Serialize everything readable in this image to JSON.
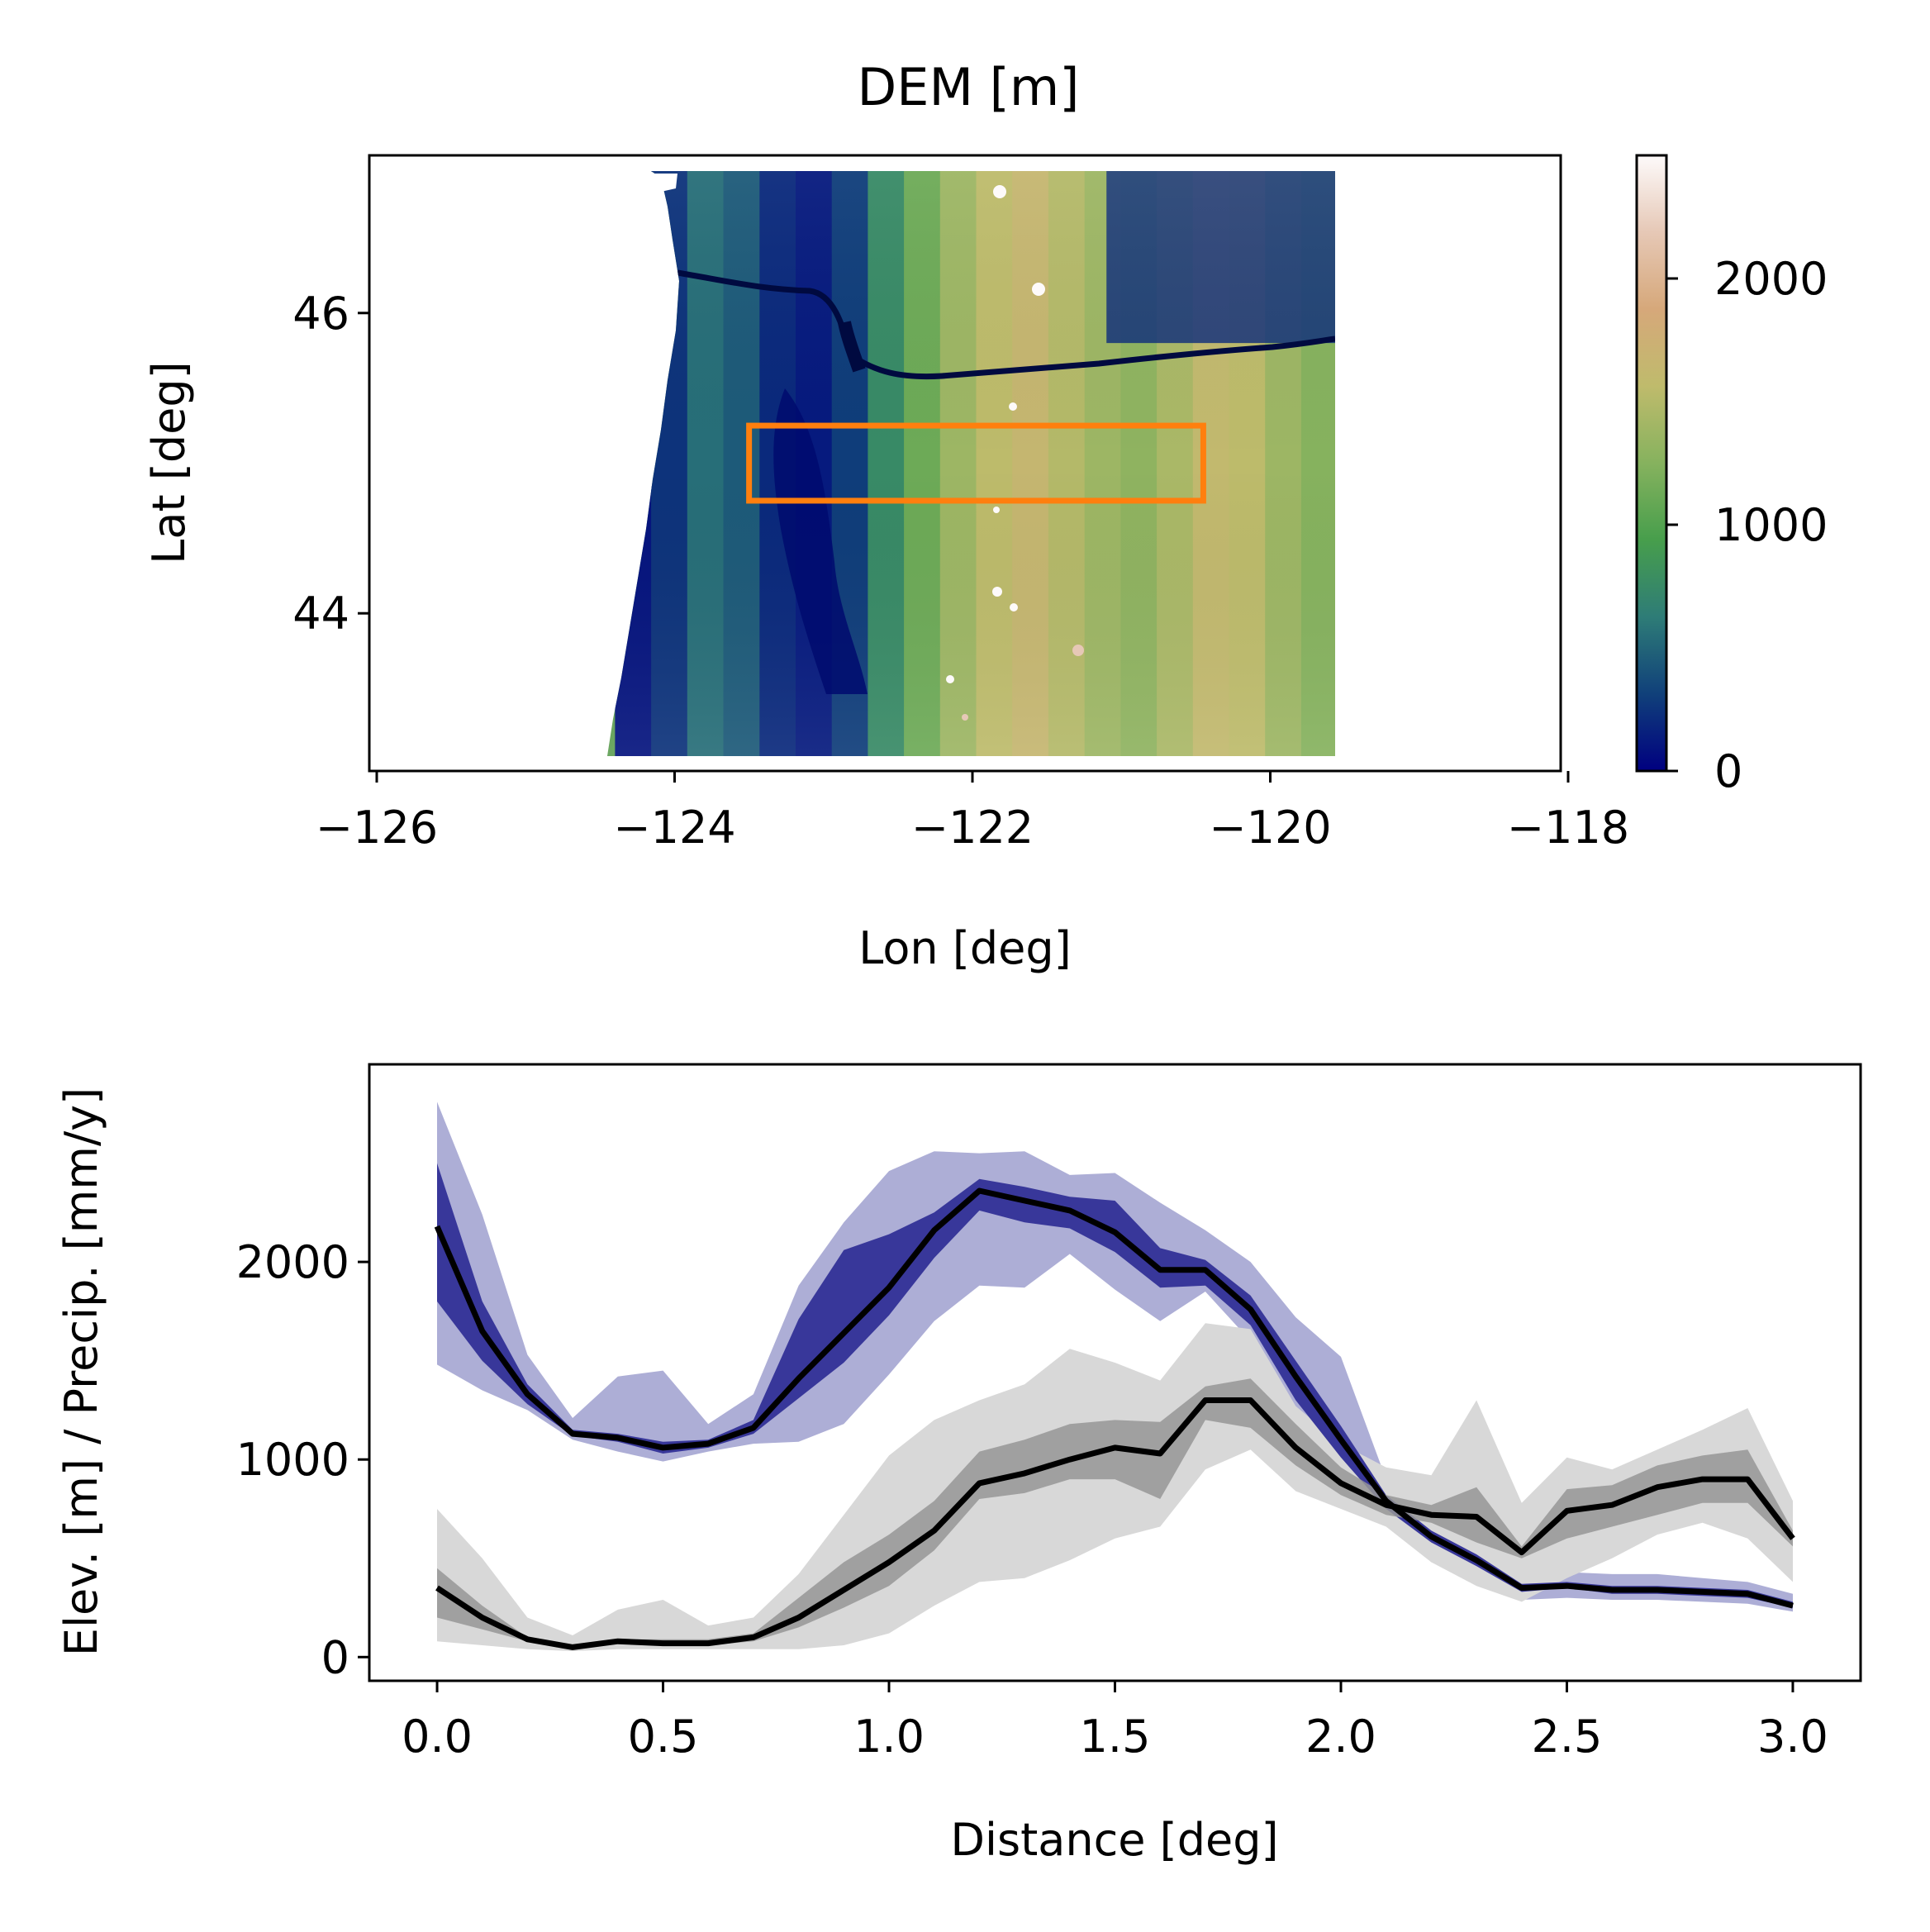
{
  "chart_data": [
    {
      "type": "heatmap",
      "title": "DEM [m]",
      "xlabel": "Lon [deg]",
      "ylabel": "Lat [deg]",
      "xlim": [
        -126.05,
        -118.05
      ],
      "ylim": [
        42.95,
        47.05
      ],
      "xticks": [
        -126,
        -124,
        -122,
        -120,
        -118
      ],
      "xtick_labels": [
        "−126",
        "−124",
        "−122",
        "−120",
        "−118"
      ],
      "yticks": [
        44,
        46
      ],
      "ytick_labels": [
        "44",
        "46"
      ],
      "colormap": "gist_earth",
      "data_extent": {
        "lon": [
          -124.4,
          -119.55
        ],
        "lat": [
          43.1,
          47.0
        ]
      },
      "colorbar": {
        "range": [
          0,
          2500
        ],
        "ticks": [
          0,
          1000,
          2000
        ],
        "tick_labels": [
          "0",
          "1000",
          "2000"
        ],
        "colors": [
          "#000080",
          "#10407a",
          "#2e7c77",
          "#479e4c",
          "#86b25e",
          "#bfbb6c",
          "#d6a87a",
          "#e6c8b6",
          "#fdfafa"
        ]
      },
      "region_box": {
        "lon": [
          -123.5,
          -120.45
        ],
        "lat": [
          44.75,
          45.25
        ],
        "color": "#ff7f0e"
      }
    },
    {
      "type": "line",
      "xlabel": "Distance [deg]",
      "ylabel": "Elev. [m] / Precip. [mm/y]",
      "xlim": [
        -0.15,
        3.15
      ],
      "ylim": [
        -120,
        3000
      ],
      "xticks": [
        0.0,
        0.5,
        1.0,
        1.5,
        2.0,
        2.5,
        3.0
      ],
      "xtick_labels": [
        "0.0",
        "0.5",
        "1.0",
        "1.5",
        "2.0",
        "2.5",
        "3.0"
      ],
      "yticks": [
        0,
        1000,
        2000
      ],
      "ytick_labels": [
        "0",
        "1000",
        "2000"
      ],
      "x": [
        0.0,
        0.1,
        0.2,
        0.3,
        0.4,
        0.5,
        0.6,
        0.7,
        0.8,
        0.9,
        1.0,
        1.1,
        1.2,
        1.3,
        1.4,
        1.5,
        1.6,
        1.7,
        1.8,
        1.9,
        2.0,
        2.1,
        2.2,
        2.3,
        2.4,
        2.5,
        2.6,
        2.7,
        2.8,
        2.9,
        3.0
      ],
      "series": [
        {
          "color": "#000000",
          "band_colors": {
            "outer": "#adaed6",
            "inner": "#38379a"
          },
          "values": [
            2180,
            1650,
            1330,
            1130,
            1110,
            1060,
            1080,
            1160,
            1410,
            1640,
            1870,
            2160,
            2360,
            2310,
            2260,
            2150,
            1960,
            1960,
            1760,
            1420,
            1100,
            790,
            610,
            490,
            350,
            360,
            340,
            340,
            330,
            320,
            260
          ],
          "inner_low": [
            1800,
            1500,
            1280,
            1120,
            1090,
            1030,
            1060,
            1130,
            1310,
            1490,
            1730,
            2020,
            2260,
            2200,
            2170,
            2050,
            1870,
            1880,
            1680,
            1300,
            1010,
            750,
            580,
            460,
            330,
            350,
            320,
            320,
            310,
            300,
            250
          ],
          "inner_high": [
            2500,
            1800,
            1380,
            1150,
            1130,
            1090,
            1100,
            1200,
            1710,
            2060,
            2140,
            2250,
            2420,
            2380,
            2330,
            2310,
            2070,
            2010,
            1830,
            1500,
            1170,
            820,
            640,
            520,
            370,
            380,
            360,
            360,
            350,
            340,
            280
          ],
          "outer_low": [
            1480,
            1350,
            1250,
            1100,
            1040,
            990,
            1040,
            1080,
            1090,
            1180,
            1430,
            1700,
            1880,
            1870,
            2040,
            1860,
            1700,
            1850,
            1600,
            1150,
            880,
            690,
            540,
            380,
            290,
            300,
            290,
            290,
            280,
            270,
            230
          ],
          "outer_high": [
            2810,
            2240,
            1530,
            1210,
            1420,
            1450,
            1180,
            1330,
            1880,
            2200,
            2460,
            2560,
            2550,
            2560,
            2440,
            2450,
            2300,
            2160,
            2000,
            1720,
            1520,
            900,
            700,
            600,
            420,
            430,
            420,
            420,
            400,
            380,
            320
          ]
        },
        {
          "color": "#000000",
          "band_colors": {
            "outer": "#d8d8d8",
            "inner": "#969696"
          },
          "values": [
            350,
            200,
            90,
            50,
            80,
            70,
            70,
            100,
            200,
            340,
            480,
            640,
            880,
            930,
            1000,
            1060,
            1030,
            1300,
            1300,
            1060,
            880,
            770,
            720,
            710,
            530,
            740,
            770,
            860,
            900,
            900,
            600
          ],
          "inner_low": [
            200,
            140,
            80,
            45,
            70,
            60,
            60,
            80,
            150,
            250,
            360,
            540,
            800,
            830,
            900,
            900,
            800,
            1200,
            1160,
            970,
            820,
            720,
            680,
            580,
            500,
            600,
            660,
            720,
            780,
            780,
            560
          ],
          "inner_high": [
            450,
            260,
            100,
            60,
            90,
            90,
            90,
            120,
            300,
            480,
            620,
            790,
            1040,
            1100,
            1180,
            1200,
            1190,
            1370,
            1410,
            1180,
            960,
            820,
            770,
            860,
            560,
            850,
            870,
            970,
            1020,
            1050,
            640
          ],
          "outer_low": [
            80,
            60,
            40,
            30,
            40,
            40,
            40,
            40,
            40,
            60,
            120,
            260,
            380,
            400,
            490,
            600,
            660,
            950,
            1050,
            840,
            750,
            660,
            480,
            360,
            280,
            400,
            500,
            620,
            680,
            600,
            380
          ],
          "outer_high": [
            750,
            500,
            200,
            110,
            240,
            290,
            160,
            200,
            420,
            720,
            1020,
            1200,
            1300,
            1380,
            1560,
            1490,
            1400,
            1690,
            1660,
            1270,
            1080,
            960,
            920,
            1300,
            780,
            1010,
            950,
            1050,
            1150,
            1260,
            790
          ]
        }
      ]
    }
  ]
}
